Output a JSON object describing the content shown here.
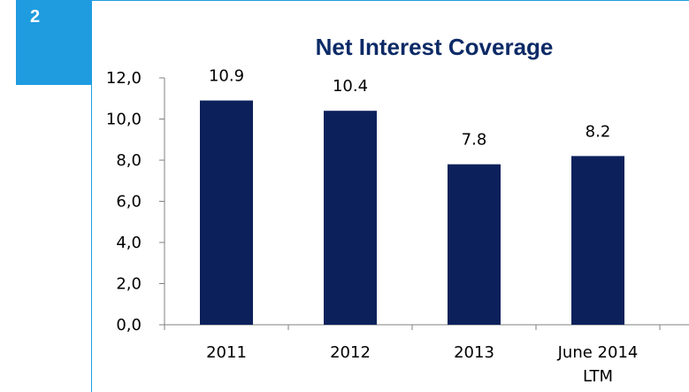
{
  "slide": {
    "number": "2"
  },
  "colors": {
    "accent": "#1f9ce0",
    "bar": "#0c215c",
    "title": "#0c2a66"
  },
  "chart_data": {
    "type": "bar",
    "title": "Net Interest Coverage",
    "xlabel": "",
    "ylabel": "",
    "categories": [
      [
        "2011"
      ],
      [
        "2012"
      ],
      [
        "2013"
      ],
      [
        "June 2014",
        "LTM"
      ]
    ],
    "values": [
      10.9,
      10.4,
      7.8,
      8.2
    ],
    "data_labels": [
      "10.9",
      "10.4",
      "7.8",
      "8.2"
    ],
    "ylim": [
      0,
      12
    ],
    "yticks": [
      0,
      2,
      4,
      6,
      8,
      10,
      12
    ],
    "ytick_labels": [
      "0,0",
      "2,0",
      "4,0",
      "6,0",
      "8,0",
      "10,0",
      "12,0"
    ],
    "grid": false,
    "legend": "none"
  }
}
